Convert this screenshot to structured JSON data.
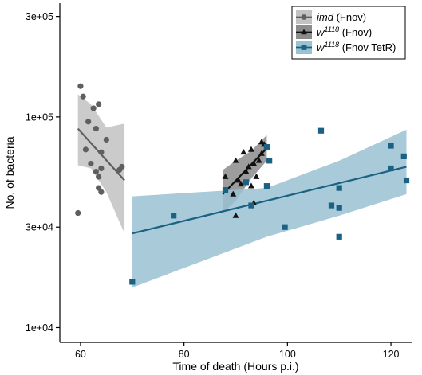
{
  "chart_data": {
    "type": "scatter",
    "xlabel": "Time of death (Hours p.i.)",
    "ylabel": "No. of bacteria",
    "xlim": [
      56,
      124
    ],
    "ylim_log10": [
      3.93,
      5.54
    ],
    "log_y": true,
    "x_ticks": [
      60,
      80,
      100,
      120
    ],
    "x_tick_labels": [
      "60",
      "80",
      "100",
      "120"
    ],
    "y_ticks": [
      10000,
      30000,
      100000,
      300000
    ],
    "y_tick_labels": [
      "1e+04",
      "3e+04",
      "1e+05",
      "3e+05"
    ],
    "legend_position": "top-right",
    "series": [
      {
        "name": "imd (Fnov)",
        "name_main": "imd",
        "name_suffix": " (Fnov)",
        "italic": true,
        "marker": "circle",
        "color": "#5f5f5f",
        "band_color": "#c2c2c2",
        "points": [
          [
            59.5,
            35000
          ],
          [
            60,
            140000
          ],
          [
            60.5,
            125000
          ],
          [
            61.5,
            95000
          ],
          [
            62.5,
            110000
          ],
          [
            63,
            88000
          ],
          [
            63.5,
            115000
          ],
          [
            64,
            68000
          ],
          [
            61,
            70000
          ],
          [
            62,
            60000
          ],
          [
            63,
            55000
          ],
          [
            63.5,
            52000
          ],
          [
            64,
            57000
          ],
          [
            63.5,
            46000
          ],
          [
            64,
            44000
          ],
          [
            65,
            78000
          ],
          [
            67.5,
            56000
          ],
          [
            68,
            58000
          ]
        ],
        "fit": {
          "x": [
            59.5,
            68.5
          ],
          "y": [
            88000,
            50000
          ]
        },
        "ci_upper": [
          [
            59.5,
            128000
          ],
          [
            62,
            115000
          ],
          [
            65,
            89000
          ],
          [
            68.5,
            93000
          ]
        ],
        "ci_lower": [
          [
            68.5,
            28000
          ],
          [
            65,
            44000
          ],
          [
            62,
            57000
          ],
          [
            59.5,
            59000
          ]
        ]
      },
      {
        "name": "w1118 (Fnov)",
        "name_main": "w",
        "name_sup": "1118",
        "name_suffix": " (Fnov)",
        "italic": true,
        "marker": "triangle",
        "color": "#111111",
        "band_color": "#8c8c8c",
        "points": [
          [
            88,
            52000
          ],
          [
            89.5,
            43000
          ],
          [
            90,
            62000
          ],
          [
            90.5,
            50000
          ],
          [
            91,
            48000
          ],
          [
            91.5,
            68000
          ],
          [
            92,
            55000
          ],
          [
            92.5,
            58000
          ],
          [
            93,
            47000
          ],
          [
            93,
            70000
          ],
          [
            93.5,
            60000
          ],
          [
            94,
            52000
          ],
          [
            94.5,
            62000
          ],
          [
            95,
            76000
          ],
          [
            95.5,
            74000
          ],
          [
            96,
            72000
          ],
          [
            95,
            67000
          ],
          [
            93.5,
            39000
          ],
          [
            90,
            34000
          ]
        ],
        "fit": {
          "x": [
            87.5,
            96
          ],
          "y": [
            43000,
            71000
          ]
        },
        "ci_upper": [
          [
            87.5,
            56000
          ],
          [
            90,
            62000
          ],
          [
            93,
            69000
          ],
          [
            96,
            82000
          ]
        ],
        "ci_lower": [
          [
            96,
            62000
          ],
          [
            93,
            51000
          ],
          [
            90,
            40000
          ],
          [
            87.5,
            35000
          ]
        ]
      },
      {
        "name": "w1118 (Fnov TetR)",
        "name_main": "w",
        "name_sup": "1118",
        "name_suffix": " (Fnov TetR)",
        "italic": true,
        "marker": "square",
        "color": "#1b6183",
        "band_color": "#9ac2d2",
        "points": [
          [
            70,
            16500
          ],
          [
            78,
            34000
          ],
          [
            88,
            45000
          ],
          [
            92,
            49000
          ],
          [
            93,
            38000
          ],
          [
            96,
            72000
          ],
          [
            96.5,
            62000
          ],
          [
            96,
            47000
          ],
          [
            99.5,
            30000
          ],
          [
            106.5,
            86000
          ],
          [
            108.5,
            38000
          ],
          [
            110,
            46000
          ],
          [
            110,
            37000
          ],
          [
            110,
            27000
          ],
          [
            120,
            73000
          ],
          [
            120,
            57000
          ],
          [
            122.5,
            65000
          ],
          [
            123,
            50000
          ]
        ],
        "fit": {
          "x": [
            70,
            123
          ],
          "y": [
            28000,
            58000
          ]
        },
        "ci_upper": [
          [
            70,
            42000
          ],
          [
            96,
            46000
          ],
          [
            110,
            62000
          ],
          [
            123,
            87000
          ]
        ],
        "ci_lower": [
          [
            123,
            43000
          ],
          [
            110,
            34000
          ],
          [
            96,
            27000
          ],
          [
            70,
            15500
          ]
        ]
      }
    ]
  }
}
